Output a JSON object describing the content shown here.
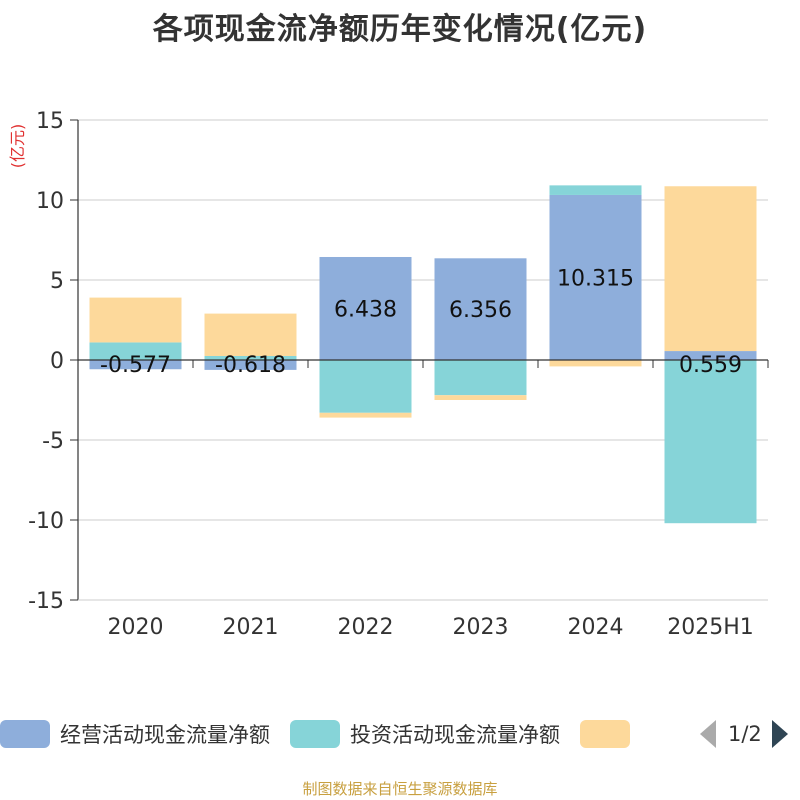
{
  "title": "各项现金流净额历年变化情况(亿元)",
  "source": "制图数据来自恒生聚源数据库",
  "colors": {
    "operating": "#8eaedb",
    "investing": "#86d4d8",
    "financing": "#fdd99b",
    "ylabel": "#e03030"
  },
  "pager": {
    "text": "1/2"
  },
  "chart_data": {
    "type": "bar",
    "stacked": true,
    "ylabel": "(亿元)",
    "ylim": [
      -15,
      15
    ],
    "yticks": [
      15,
      10,
      5,
      0,
      -5,
      -10,
      -15
    ],
    "grid": true,
    "legend_position": "bottom",
    "categories": [
      "2020",
      "2021",
      "2022",
      "2023",
      "2024",
      "2025H1"
    ],
    "series": [
      {
        "name": "经营活动现金流量净额",
        "values": [
          -0.577,
          -0.618,
          6.438,
          6.356,
          10.315,
          0.559
        ],
        "labels": [
          "-0.577",
          "-0.618",
          "6.438",
          "6.356",
          "10.315",
          "0.559"
        ]
      },
      {
        "name": "投资活动现金流量净额",
        "values": [
          1.1,
          0.25,
          -3.3,
          -2.2,
          0.6,
          -10.2
        ]
      },
      {
        "name": "",
        "values": [
          2.8,
          2.65,
          -0.3,
          -0.3,
          -0.4,
          10.3
        ]
      }
    ]
  }
}
